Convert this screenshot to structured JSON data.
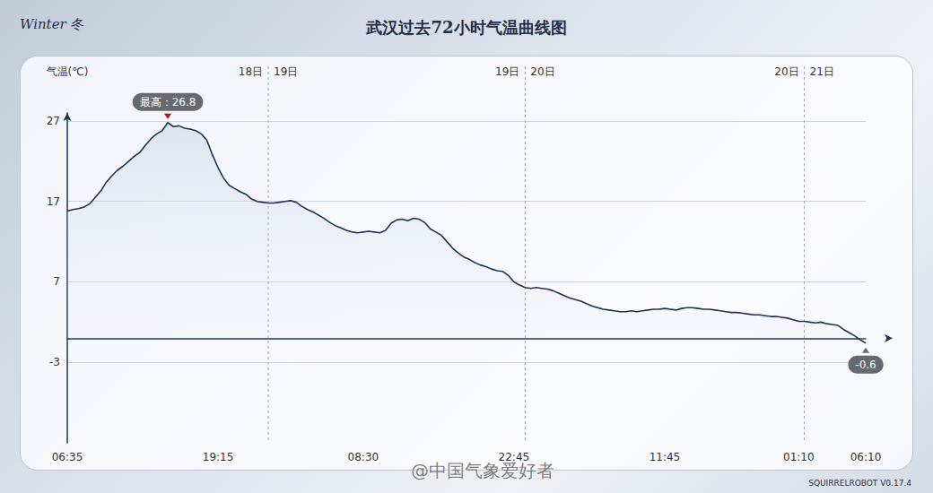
{
  "chart_data": {
    "type": "line",
    "header": "Winter 冬",
    "title": "武汉过去72小时气温曲线图",
    "y_label": "气温(℃)",
    "color": "#1e3354",
    "grid": true,
    "ylim": [
      -13,
      28
    ],
    "yticks": [
      -3,
      7,
      17,
      27
    ],
    "categories": [
      "06:35",
      null,
      null,
      null,
      null,
      null,
      null,
      null,
      null,
      null,
      null,
      null,
      null,
      null,
      null,
      null,
      null,
      null,
      null,
      null,
      null,
      null,
      null,
      null,
      null,
      null,
      null,
      "19:15",
      null,
      null,
      null,
      null,
      null,
      null,
      null,
      null,
      null,
      null,
      null,
      null,
      null,
      null,
      null,
      null,
      null,
      null,
      null,
      null,
      null,
      null,
      null,
      null,
      null,
      "08:30",
      null,
      null,
      null,
      null,
      null,
      null,
      null,
      null,
      null,
      null,
      null,
      null,
      null,
      null,
      null,
      null,
      null,
      null,
      null,
      null,
      null,
      null,
      null,
      null,
      null,
      null,
      "22:45",
      null,
      null,
      null,
      null,
      null,
      null,
      null,
      null,
      null,
      null,
      null,
      null,
      null,
      null,
      null,
      null,
      null,
      null,
      null,
      null,
      null,
      null,
      null,
      null,
      null,
      null,
      "11:45",
      null,
      null,
      null,
      null,
      null,
      null,
      null,
      null,
      null,
      null,
      null,
      null,
      null,
      null,
      null,
      null,
      null,
      null,
      null,
      null,
      null,
      null,
      null,
      "01:10",
      null,
      null,
      null,
      null,
      null,
      null,
      null,
      null,
      null,
      null,
      null,
      "06:10"
    ],
    "values": [
      15.8,
      16.0,
      16.1,
      16.3,
      16.7,
      17.5,
      18.3,
      19.4,
      20.2,
      20.9,
      21.4,
      22.0,
      22.6,
      23.1,
      24.0,
      24.8,
      25.4,
      25.8,
      26.8,
      26.3,
      26.4,
      26.1,
      26.0,
      25.8,
      25.4,
      24.6,
      22.8,
      21.2,
      19.9,
      19.0,
      18.6,
      18.2,
      17.9,
      17.3,
      17.0,
      16.9,
      16.8,
      16.8,
      16.9,
      17.0,
      17.1,
      16.9,
      16.4,
      16.0,
      15.7,
      15.3,
      14.9,
      14.4,
      14.0,
      13.7,
      13.4,
      13.2,
      13.1,
      13.2,
      13.3,
      13.2,
      13.1,
      13.4,
      14.3,
      14.7,
      14.8,
      14.6,
      14.9,
      14.8,
      14.4,
      13.6,
      13.2,
      12.8,
      12.0,
      11.2,
      10.6,
      10.1,
      9.8,
      9.4,
      9.1,
      8.9,
      8.6,
      8.4,
      8.3,
      7.8,
      7.0,
      6.6,
      6.3,
      6.2,
      6.3,
      6.2,
      6.1,
      5.9,
      5.6,
      5.3,
      5.0,
      4.8,
      4.6,
      4.3,
      4.0,
      3.8,
      3.6,
      3.5,
      3.4,
      3.3,
      3.3,
      3.4,
      3.3,
      3.4,
      3.5,
      3.6,
      3.6,
      3.7,
      3.6,
      3.5,
      3.7,
      3.8,
      3.8,
      3.7,
      3.6,
      3.6,
      3.5,
      3.4,
      3.3,
      3.2,
      3.2,
      3.1,
      3.0,
      2.9,
      2.9,
      2.8,
      2.7,
      2.7,
      2.6,
      2.5,
      2.3,
      2.1,
      2.1,
      2.0,
      1.9,
      2.0,
      1.8,
      1.7,
      1.6,
      1.1,
      0.7,
      0.3,
      -0.2,
      -0.6
    ],
    "annotations": [
      {
        "index": 18,
        "text": "最高：26.8"
      },
      {
        "index": 143,
        "text": "-0.6"
      }
    ],
    "day_markers": [
      {
        "index": 36,
        "before": "18日",
        "after": "19日"
      },
      {
        "index": 82,
        "before": "19日",
        "after": "20日"
      },
      {
        "index": 132,
        "before": "20日",
        "after": "21日"
      }
    ],
    "watermark": "@中国气象爱好者",
    "footer": "SQUIRRELROBOT V0.17.4"
  }
}
